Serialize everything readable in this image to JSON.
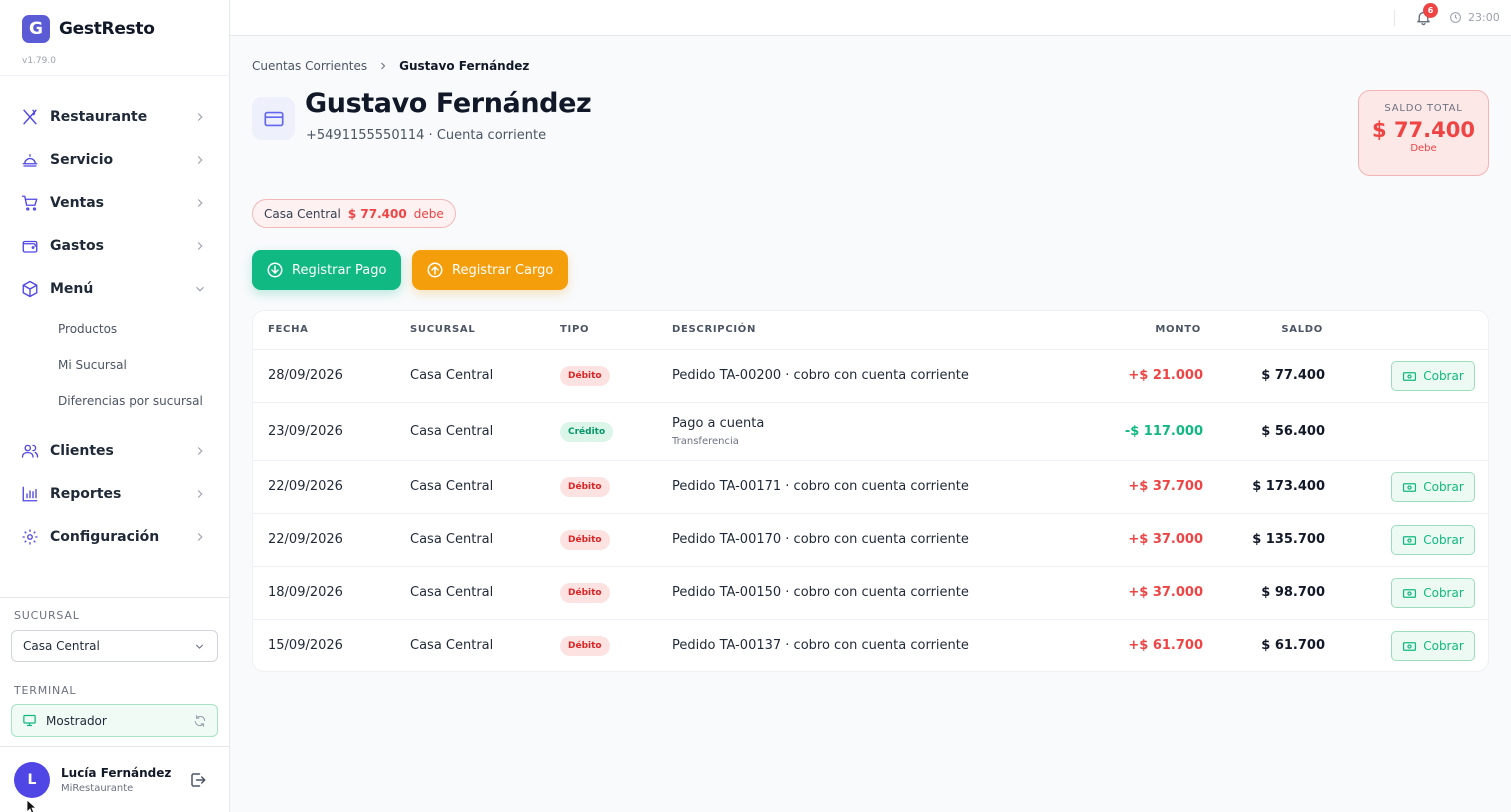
{
  "brand": {
    "logo_letter": "G",
    "name": "GestResto",
    "version": "v1.79.0"
  },
  "nav": {
    "items": [
      {
        "label": "Restaurante",
        "icon": "utensils-icon"
      },
      {
        "label": "Servicio",
        "icon": "cloche-icon"
      },
      {
        "label": "Ventas",
        "icon": "cart-icon"
      },
      {
        "label": "Gastos",
        "icon": "wallet-icon"
      },
      {
        "label": "Menú",
        "icon": "box-icon",
        "expanded": true
      },
      {
        "label": "Clientes",
        "icon": "users-icon"
      },
      {
        "label": "Reportes",
        "icon": "bar-chart-icon"
      },
      {
        "label": "Configuración",
        "icon": "gear-icon"
      }
    ],
    "menu_subitems": [
      "Productos",
      "Mi Sucursal",
      "Diferencias por sucursal"
    ]
  },
  "sidebar_bottom": {
    "sucursal_label": "SUCURSAL",
    "sucursal_value": "Casa Central",
    "terminal_label": "TERMINAL",
    "terminal_value": "Mostrador"
  },
  "user": {
    "initial": "L",
    "name": "Lucía Fernández",
    "org": "MiRestaurante"
  },
  "topbar": {
    "notifications": "6",
    "time": "23:00"
  },
  "breadcrumb": {
    "parent": "Cuentas Corrientes",
    "current": "Gustavo Fernández"
  },
  "client": {
    "name": "Gustavo Fernández",
    "subtitle": "+5491155550114 · Cuenta corriente"
  },
  "saldo_total": {
    "label": "SALDO TOTAL",
    "amount": "$ 77.400",
    "status": "Debe"
  },
  "branch_balance": {
    "branch": "Casa Central",
    "amount": "$ 77.400",
    "status": "debe"
  },
  "actions": {
    "pago_label": "Registrar Pago",
    "cargo_label": "Registrar Cargo"
  },
  "table": {
    "headers": {
      "fecha": "FECHA",
      "sucursal": "SUCURSAL",
      "tipo": "TIPO",
      "descripcion": "DESCRIPCIÓN",
      "monto": "MONTO",
      "saldo": "SALDO"
    },
    "cobrar_label": "Cobrar",
    "rows": [
      {
        "fecha": "28/09/2026",
        "sucursal": "Casa Central",
        "tipo": "Débito",
        "descripcion": "Pedido TA-00200 · cobro con cuenta corriente",
        "detalle": "",
        "monto": "+$ 21.000",
        "saldo": "$ 77.400",
        "cobrar": true
      },
      {
        "fecha": "23/09/2026",
        "sucursal": "Casa Central",
        "tipo": "Crédito",
        "descripcion": "Pago a cuenta",
        "detalle": "Transferencia",
        "monto": "-$ 117.000",
        "saldo": "$ 56.400",
        "cobrar": false
      },
      {
        "fecha": "22/09/2026",
        "sucursal": "Casa Central",
        "tipo": "Débito",
        "descripcion": "Pedido TA-00171 · cobro con cuenta corriente",
        "detalle": "",
        "monto": "+$ 37.700",
        "saldo": "$ 173.400",
        "cobrar": true
      },
      {
        "fecha": "22/09/2026",
        "sucursal": "Casa Central",
        "tipo": "Débito",
        "descripcion": "Pedido TA-00170 · cobro con cuenta corriente",
        "detalle": "",
        "monto": "+$ 37.000",
        "saldo": "$ 135.700",
        "cobrar": true
      },
      {
        "fecha": "18/09/2026",
        "sucursal": "Casa Central",
        "tipo": "Débito",
        "descripcion": "Pedido TA-00150 · cobro con cuenta corriente",
        "detalle": "",
        "monto": "+$ 37.000",
        "saldo": "$ 98.700",
        "cobrar": true
      },
      {
        "fecha": "15/09/2026",
        "sucursal": "Casa Central",
        "tipo": "Débito",
        "descripcion": "Pedido TA-00137 · cobro con cuenta corriente",
        "detalle": "",
        "monto": "+$ 61.700",
        "saldo": "$ 61.700",
        "cobrar": true
      }
    ]
  },
  "colors": {
    "accent": "#4f46e5",
    "success": "#10b981",
    "warning": "#f59e0b",
    "danger": "#ef4444"
  }
}
